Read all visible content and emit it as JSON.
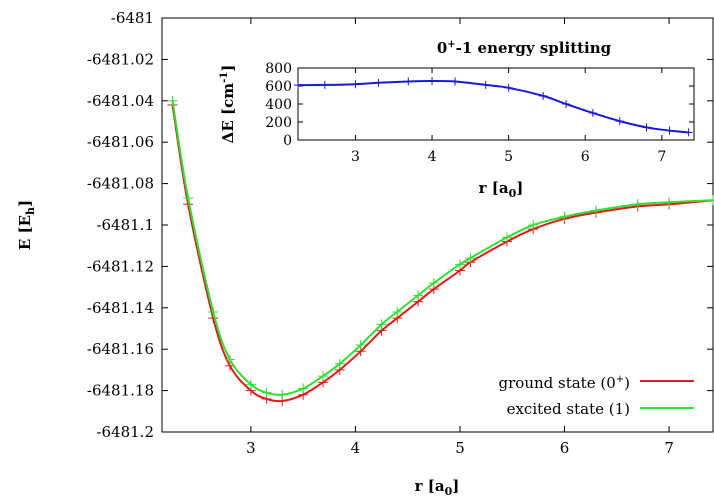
{
  "chart_data": [
    {
      "type": "line",
      "xlabel": "r [a",
      "xlabel_sub": "0",
      "xlabel_end": "]",
      "ylabel": "E [E",
      "ylabel_sub": "h",
      "ylabel_end": "]",
      "xlim": [
        2.15,
        7.42
      ],
      "ylim": [
        -6481.2,
        -6481.0
      ],
      "xticks": [
        3,
        4,
        5,
        6,
        7
      ],
      "yticks": [
        -6481,
        -6481.02,
        -6481.04,
        -6481.06,
        -6481.08,
        -6481.1,
        -6481.12,
        -6481.14,
        -6481.16,
        -6481.18,
        -6481.2
      ],
      "ytick_labels": [
        "-6481",
        "-6481.02",
        "-6481.04",
        "-6481.06",
        "-6481.08",
        "-6481.1",
        "-6481.12",
        "-6481.14",
        "-6481.16",
        "-6481.18",
        "-6481.2"
      ],
      "grid": false,
      "legend_position": "bottom-right",
      "series": [
        {
          "name": "ground state (0",
          "name_sup": "+",
          "name_end": ")",
          "color": "#dd1c1c",
          "x": [
            2.25,
            2.4,
            2.64,
            2.8,
            3.0,
            3.15,
            3.3,
            3.5,
            3.69,
            3.85,
            4.05,
            4.25,
            4.4,
            4.6,
            4.75,
            5.0,
            5.1,
            5.45,
            5.7,
            6.0,
            6.3,
            6.7,
            7.0,
            7.42
          ],
          "y": [
            -6481.042,
            -6481.09,
            -6481.145,
            -6481.168,
            -6481.18,
            -6481.184,
            -6481.185,
            -6481.182,
            -6481.176,
            -6481.17,
            -6481.161,
            -6481.151,
            -6481.145,
            -6481.137,
            -6481.131,
            -6481.122,
            -6481.118,
            -6481.108,
            -6481.102,
            -6481.097,
            -6481.094,
            -6481.091,
            -6481.09,
            -6481.088
          ]
        },
        {
          "name": "excited state (1)",
          "color": "#33dd33",
          "x": [
            2.25,
            2.4,
            2.64,
            2.8,
            3.0,
            3.15,
            3.3,
            3.5,
            3.69,
            3.85,
            4.05,
            4.25,
            4.4,
            4.6,
            4.75,
            5.0,
            5.1,
            5.45,
            5.7,
            6.0,
            6.3,
            6.7,
            7.0,
            7.42
          ],
          "y": [
            -6481.04,
            -6481.087,
            -6481.142,
            -6481.165,
            -6481.177,
            -6481.181,
            -6481.182,
            -6481.179,
            -6481.173,
            -6481.167,
            -6481.158,
            -6481.148,
            -6481.142,
            -6481.134,
            -6481.128,
            -6481.119,
            -6481.116,
            -6481.106,
            -6481.1,
            -6481.096,
            -6481.093,
            -6481.09,
            -6481.089,
            -6481.088
          ]
        }
      ]
    },
    {
      "type": "line",
      "title": "-1 energy splitting",
      "title_prefix": "0",
      "title_sup": "+",
      "xlabel": "r [a",
      "xlabel_sub": "0",
      "xlabel_end": "]",
      "ylabel": "ΔE [cm",
      "ylabel_sup": "-1",
      "ylabel_end": "]",
      "xlim": [
        2.25,
        7.42
      ],
      "ylim": [
        0,
        800
      ],
      "xticks": [
        3,
        4,
        5,
        6,
        7
      ],
      "yticks": [
        0,
        200,
        400,
        600,
        800
      ],
      "grid": false,
      "series": [
        {
          "color": "#1a1ad4",
          "x": [
            2.25,
            2.6,
            3.0,
            3.3,
            3.69,
            4.0,
            4.3,
            4.7,
            5.0,
            5.45,
            5.75,
            6.1,
            6.45,
            6.8,
            7.1,
            7.35
          ],
          "y": [
            610,
            612,
            620,
            635,
            650,
            655,
            650,
            612,
            580,
            490,
            400,
            300,
            210,
            140,
            105,
            85
          ]
        }
      ]
    }
  ]
}
